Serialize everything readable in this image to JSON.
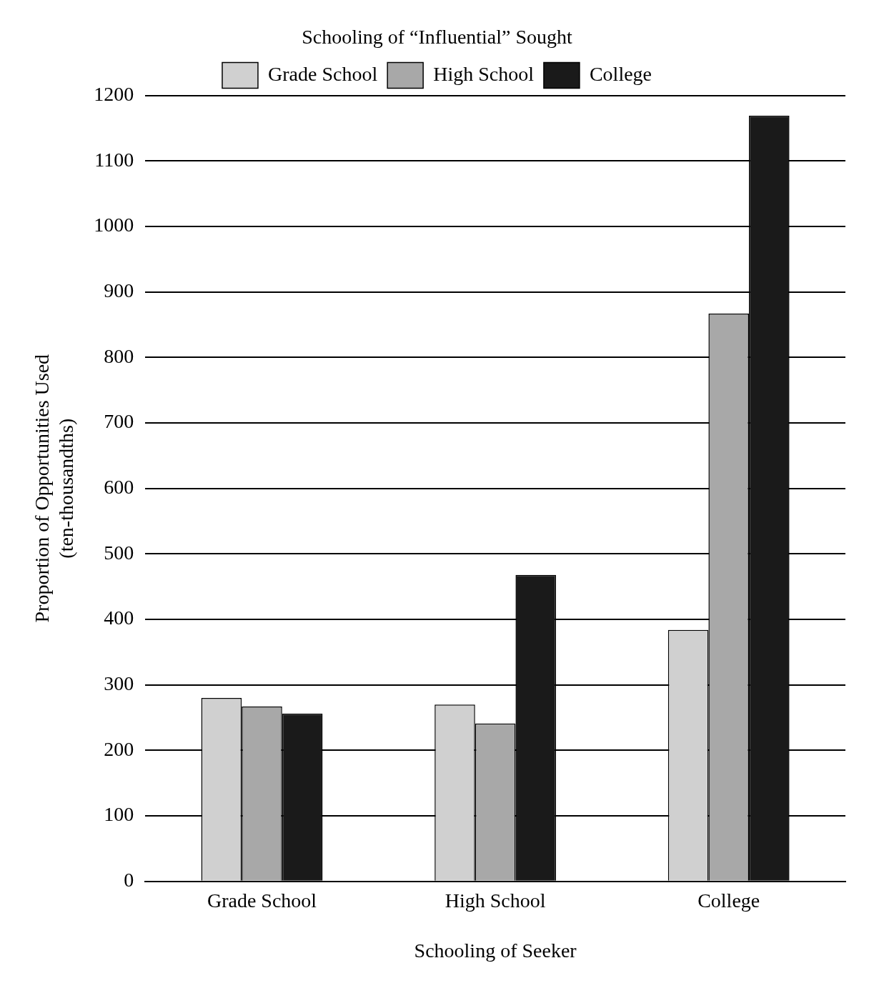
{
  "chart_data": {
    "type": "bar",
    "xlabel": "Schooling of Seeker",
    "ylabel": "Proportion of Opportunities Used\n(ten-thousandths)",
    "legend_title": "Schooling of “Influential” Sought",
    "categories": [
      "Grade School",
      "High School",
      "College"
    ],
    "series": [
      {
        "name": "Grade School",
        "color": "#d0d0d0",
        "values": [
          280,
          270,
          384
        ]
      },
      {
        "name": "High School",
        "color": "#a8a8a8",
        "values": [
          267,
          241,
          867
        ]
      },
      {
        "name": "College",
        "color": "#1a1a1a",
        "values": [
          256,
          468,
          1169
        ]
      }
    ],
    "ylim": [
      0,
      1200
    ],
    "yticks": [
      0,
      100,
      200,
      300,
      400,
      500,
      600,
      700,
      800,
      900,
      1000,
      1100,
      1200
    ],
    "grid": "y",
    "legend": "top"
  }
}
